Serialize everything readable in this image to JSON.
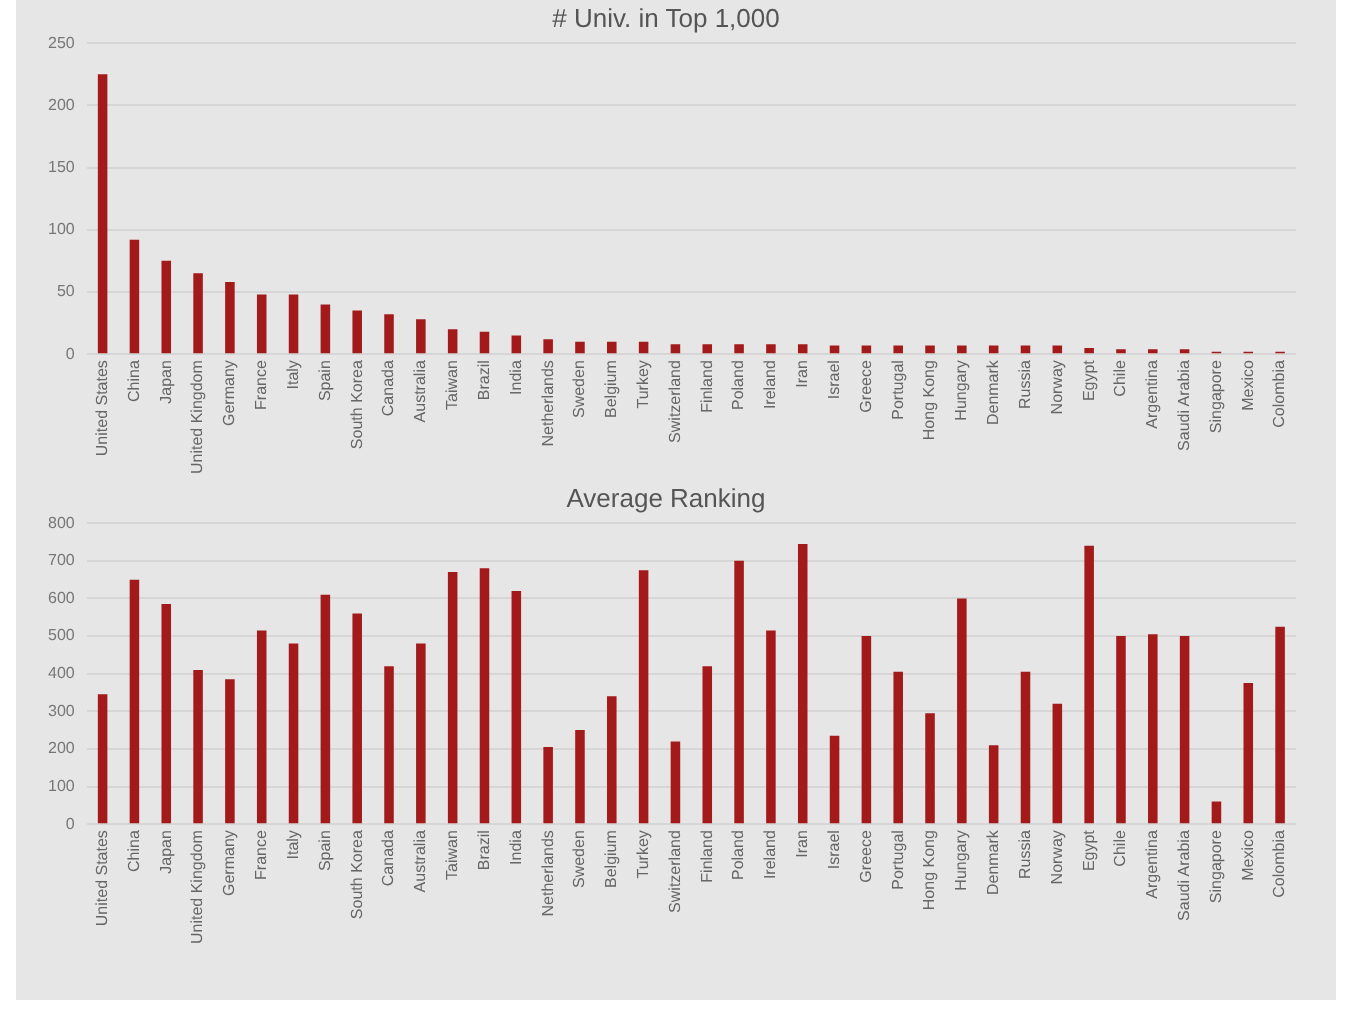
{
  "chart_data": [
    {
      "type": "bar",
      "title": "# Univ. in Top 1,000",
      "categories": [
        "United States",
        "China",
        "Japan",
        "United Kingdom",
        "Germany",
        "France",
        "Italy",
        "Spain",
        "South Korea",
        "Canada",
        "Australia",
        "Taiwan",
        "Brazil",
        "India",
        "Netherlands",
        "Sweden",
        "Belgium",
        "Turkey",
        "Switzerland",
        "Finland",
        "Poland",
        "Ireland",
        "Iran",
        "Israel",
        "Greece",
        "Portugal",
        "Hong Kong",
        "Hungary",
        "Denmark",
        "Russia",
        "Norway",
        "Egypt",
        "Chile",
        "Argentina",
        "Saudi Arabia",
        "Singapore",
        "Mexico",
        "Colombia"
      ],
      "values": [
        225,
        92,
        75,
        65,
        58,
        48,
        48,
        40,
        35,
        32,
        28,
        20,
        18,
        15,
        12,
        10,
        10,
        10,
        8,
        8,
        8,
        8,
        8,
        7,
        7,
        7,
        7,
        7,
        7,
        7,
        7,
        5,
        4,
        4,
        4,
        2,
        2,
        2
      ],
      "color": "#a31a1a",
      "ylim": [
        0,
        250
      ],
      "yticks": [
        0,
        50,
        100,
        150,
        200,
        250
      ],
      "grid": "y",
      "legend": false
    },
    {
      "type": "bar",
      "title": "Average Ranking",
      "categories": [
        "United States",
        "China",
        "Japan",
        "United Kingdom",
        "Germany",
        "France",
        "Italy",
        "Spain",
        "South Korea",
        "Canada",
        "Australia",
        "Taiwan",
        "Brazil",
        "India",
        "Netherlands",
        "Sweden",
        "Belgium",
        "Turkey",
        "Switzerland",
        "Finland",
        "Poland",
        "Ireland",
        "Iran",
        "Israel",
        "Greece",
        "Portugal",
        "Hong Kong",
        "Hungary",
        "Denmark",
        "Russia",
        "Norway",
        "Egypt",
        "Chile",
        "Argentina",
        "Saudi Arabia",
        "Singapore",
        "Mexico",
        "Colombia"
      ],
      "values": [
        345,
        650,
        585,
        410,
        385,
        515,
        480,
        610,
        560,
        420,
        480,
        670,
        680,
        620,
        205,
        250,
        340,
        675,
        220,
        420,
        700,
        515,
        745,
        235,
        500,
        405,
        295,
        600,
        210,
        405,
        320,
        740,
        500,
        505,
        500,
        60,
        375,
        525
      ],
      "color": "#a31a1a",
      "ylim": [
        0,
        800
      ],
      "yticks": [
        0,
        100,
        200,
        300,
        400,
        500,
        600,
        700,
        800
      ],
      "grid": "y",
      "legend": false
    }
  ]
}
